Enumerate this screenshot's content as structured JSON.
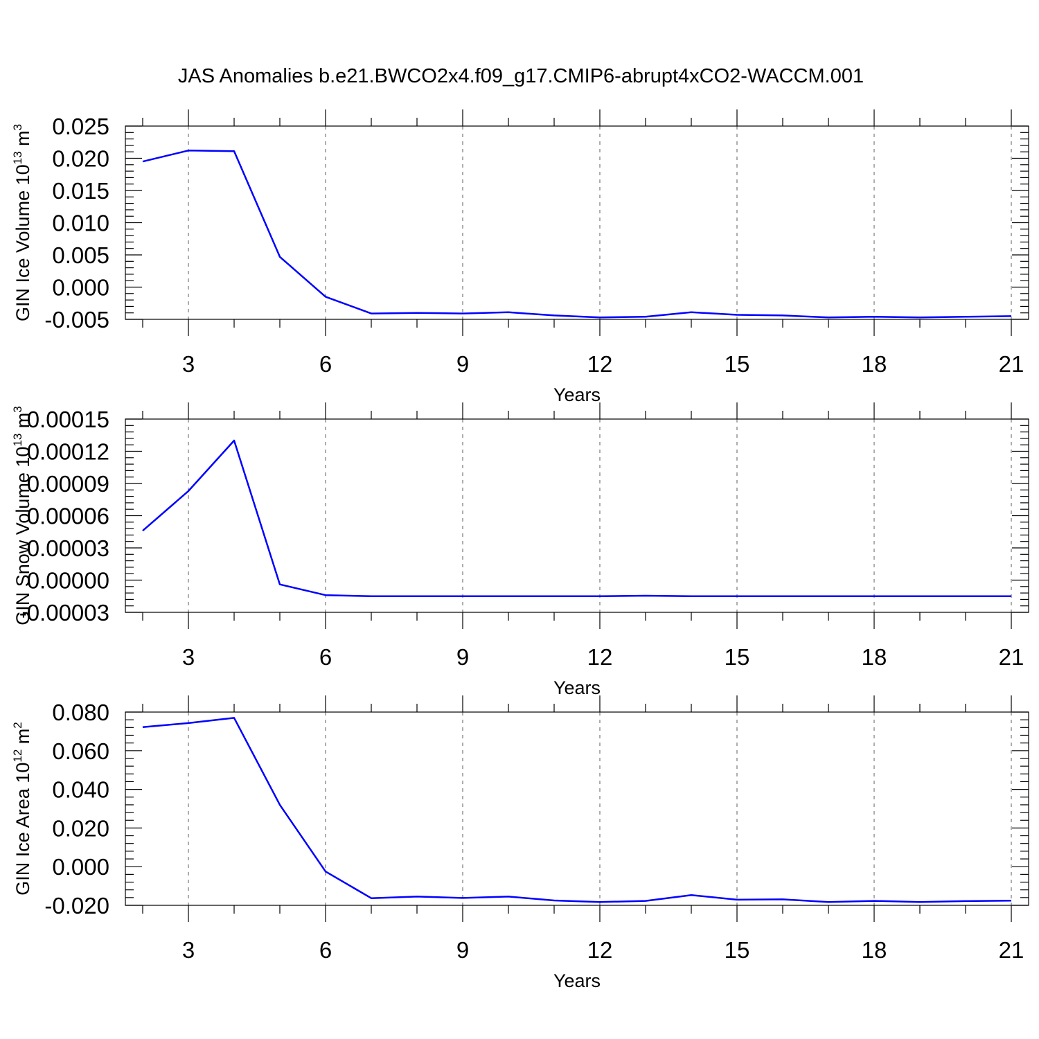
{
  "title": "JAS Anomalies b.e21.BWCO2x4.f09_g17.CMIP6-abrupt4xCO2-WACCM.001",
  "colors": {
    "line": "#0000ff",
    "grid": "#777777",
    "axes": "#000000"
  },
  "chart_data": [
    {
      "type": "line",
      "ylabel_main": "GIN Ice Volume 10",
      "ylabel_sup": "13",
      "ylabel_unit": " m",
      "ylabel_unit_sup": "3",
      "xlabel": "Years",
      "xlim": [
        2,
        21
      ],
      "ylim": [
        -0.005,
        0.025
      ],
      "yticks": [
        -0.005,
        0.0,
        0.005,
        0.01,
        0.015,
        0.02,
        0.025
      ],
      "ytick_labels": [
        "-0.005",
        "0.000",
        "0.005",
        "0.010",
        "0.015",
        "0.020",
        "0.025"
      ],
      "xticks": [
        3,
        6,
        9,
        12,
        15,
        18,
        21
      ],
      "xtick_labels": [
        "3",
        "6",
        "9",
        "12",
        "15",
        "18",
        "21"
      ],
      "grid": true,
      "x": [
        2,
        3,
        4,
        5,
        6,
        7,
        8,
        9,
        10,
        11,
        12,
        13,
        14,
        15,
        16,
        17,
        18,
        19,
        20,
        21
      ],
      "values": [
        0.0195,
        0.0212,
        0.0211,
        0.0047,
        -0.0015,
        -0.0041,
        -0.004,
        -0.0041,
        -0.0039,
        -0.0044,
        -0.0047,
        -0.0046,
        -0.0039,
        -0.0043,
        -0.0044,
        -0.0047,
        -0.0046,
        -0.0047,
        -0.0046,
        -0.0045
      ]
    },
    {
      "type": "line",
      "ylabel_main": "GIN Snow Volume 10",
      "ylabel_sup": "13",
      "ylabel_unit": " m",
      "ylabel_unit_sup": "3",
      "xlabel": "Years",
      "xlim": [
        2,
        21
      ],
      "ylim": [
        -3e-05,
        0.00015
      ],
      "yticks": [
        -3e-05,
        0.0,
        3e-05,
        6e-05,
        9e-05,
        0.00012,
        0.00015
      ],
      "ytick_labels": [
        "-0.00003",
        "0.00000",
        "0.00003",
        "0.00006",
        "0.00009",
        "0.00012",
        "0.00015"
      ],
      "xticks": [
        3,
        6,
        9,
        12,
        15,
        18,
        21
      ],
      "xtick_labels": [
        "3",
        "6",
        "9",
        "12",
        "15",
        "18",
        "21"
      ],
      "grid": true,
      "x": [
        2,
        3,
        4,
        5,
        6,
        7,
        8,
        9,
        10,
        11,
        12,
        13,
        14,
        15,
        16,
        17,
        18,
        19,
        20,
        21
      ],
      "values": [
        4.6e-05,
        8.3e-05,
        0.00013,
        -4e-06,
        -1.4e-05,
        -1.5e-05,
        -1.5e-05,
        -1.5e-05,
        -1.5e-05,
        -1.5e-05,
        -1.5e-05,
        -1.45e-05,
        -1.5e-05,
        -1.5e-05,
        -1.5e-05,
        -1.5e-05,
        -1.5e-05,
        -1.5e-05,
        -1.5e-05,
        -1.5e-05
      ]
    },
    {
      "type": "line",
      "ylabel_main": "GIN Ice Area 10",
      "ylabel_sup": "12",
      "ylabel_unit": " m",
      "ylabel_unit_sup": "2",
      "xlabel": "Years",
      "xlim": [
        2,
        21
      ],
      "ylim": [
        -0.02,
        0.08
      ],
      "yticks": [
        -0.02,
        0.0,
        0.02,
        0.04,
        0.06,
        0.08
      ],
      "ytick_labels": [
        "-0.020",
        "0.000",
        "0.020",
        "0.040",
        "0.060",
        "0.080"
      ],
      "xticks": [
        3,
        6,
        9,
        12,
        15,
        18,
        21
      ],
      "xtick_labels": [
        "3",
        "6",
        "9",
        "12",
        "15",
        "18",
        "21"
      ],
      "grid": true,
      "x": [
        2,
        3,
        4,
        5,
        6,
        7,
        8,
        9,
        10,
        11,
        12,
        13,
        14,
        15,
        16,
        17,
        18,
        19,
        20,
        21
      ],
      "values": [
        0.0722,
        0.0743,
        0.077,
        0.032,
        -0.0025,
        -0.0163,
        -0.0155,
        -0.0162,
        -0.0155,
        -0.0175,
        -0.0183,
        -0.0177,
        -0.0147,
        -0.0171,
        -0.0169,
        -0.0183,
        -0.0177,
        -0.0183,
        -0.0178,
        -0.0176
      ]
    }
  ]
}
